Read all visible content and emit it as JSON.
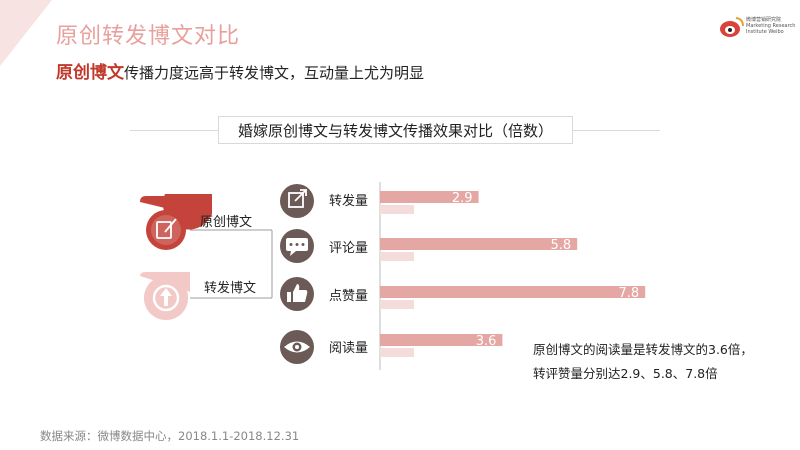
{
  "page": {
    "title": "原创转发博文对比",
    "subtitle_highlight": "原创博文",
    "subtitle_rest": "传播力度远高于转发博文，互动量上尤为明显",
    "logo_text": "微博营销研究院 Marketing Research Institute Weibo",
    "note_line1": "原创博文的阅读量是转发博文的3.6倍，",
    "note_line2": "转评赞量分别达2.9、5.8、7.8倍",
    "source": "数据来源：微博数据中心，2018.1.1-2018.12.31"
  },
  "legend": [
    {
      "name": "原创博文",
      "icon": "edit-icon",
      "color": "#c4433b"
    },
    {
      "name": "转发博文",
      "icon": "share-arrow-icon",
      "color": "#f2c9c6"
    }
  ],
  "icons": [
    "share-box-icon",
    "comment-icon",
    "thumbs-up-icon",
    "eye-icon"
  ],
  "colors": {
    "original_bar": "#e4a7a3",
    "repost_bar": "#f4dcda",
    "icon_circle": "#6b5a55",
    "accent": "#c0392b"
  },
  "chart_data": {
    "type": "bar",
    "title": "婚嫁原创博文与转发博文传播效果对比（倍数）",
    "orientation": "horizontal",
    "categories": [
      "转发量",
      "评论量",
      "点赞量",
      "阅读量"
    ],
    "series": [
      {
        "name": "原创博文",
        "values": [
          2.9,
          5.8,
          7.8,
          3.6
        ]
      },
      {
        "name": "转发博文",
        "values": [
          1,
          1,
          1,
          1
        ]
      }
    ],
    "xlim": [
      0,
      8
    ],
    "grid": false
  }
}
